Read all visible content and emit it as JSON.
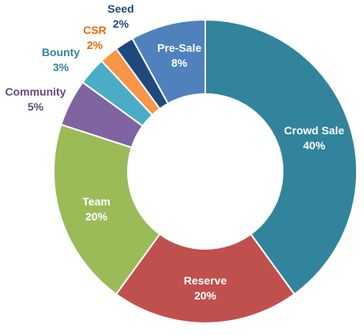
{
  "chart_data": {
    "type": "pie",
    "style": "donut",
    "title": "",
    "slices": [
      {
        "label": "Crowd Sale",
        "value": 40,
        "display": "40%",
        "color": "#31849b",
        "label_placement": "inside",
        "label_color": "#ffffff"
      },
      {
        "label": "Reserve",
        "value": 20,
        "display": "20%",
        "color": "#c0504d",
        "label_placement": "inside",
        "label_color": "#ffffff"
      },
      {
        "label": "Team",
        "value": 20,
        "display": "20%",
        "color": "#9bbb59",
        "label_placement": "inside",
        "label_color": "#ffffff"
      },
      {
        "label": "Community",
        "value": 5,
        "display": "5%",
        "color": "#8064a2",
        "label_placement": "outside",
        "label_color": "#604a7b"
      },
      {
        "label": "Bounty",
        "value": 3,
        "display": "3%",
        "color": "#4bacc6",
        "label_placement": "outside",
        "label_color": "#31859c"
      },
      {
        "label": "CSR",
        "value": 2,
        "display": "2%",
        "color": "#f79646",
        "label_placement": "outside",
        "label_color": "#e46c0a"
      },
      {
        "label": "Seed",
        "value": 2,
        "display": "2%",
        "color": "#1f497d",
        "label_placement": "outside",
        "label_color": "#1f497d"
      },
      {
        "label": "Pre-Sale",
        "value": 8,
        "display": "8%",
        "color": "#4f81bd",
        "label_placement": "inside",
        "label_color": "#ffffff"
      }
    ],
    "start": "top",
    "direction": "clockwise",
    "legend": "none"
  }
}
